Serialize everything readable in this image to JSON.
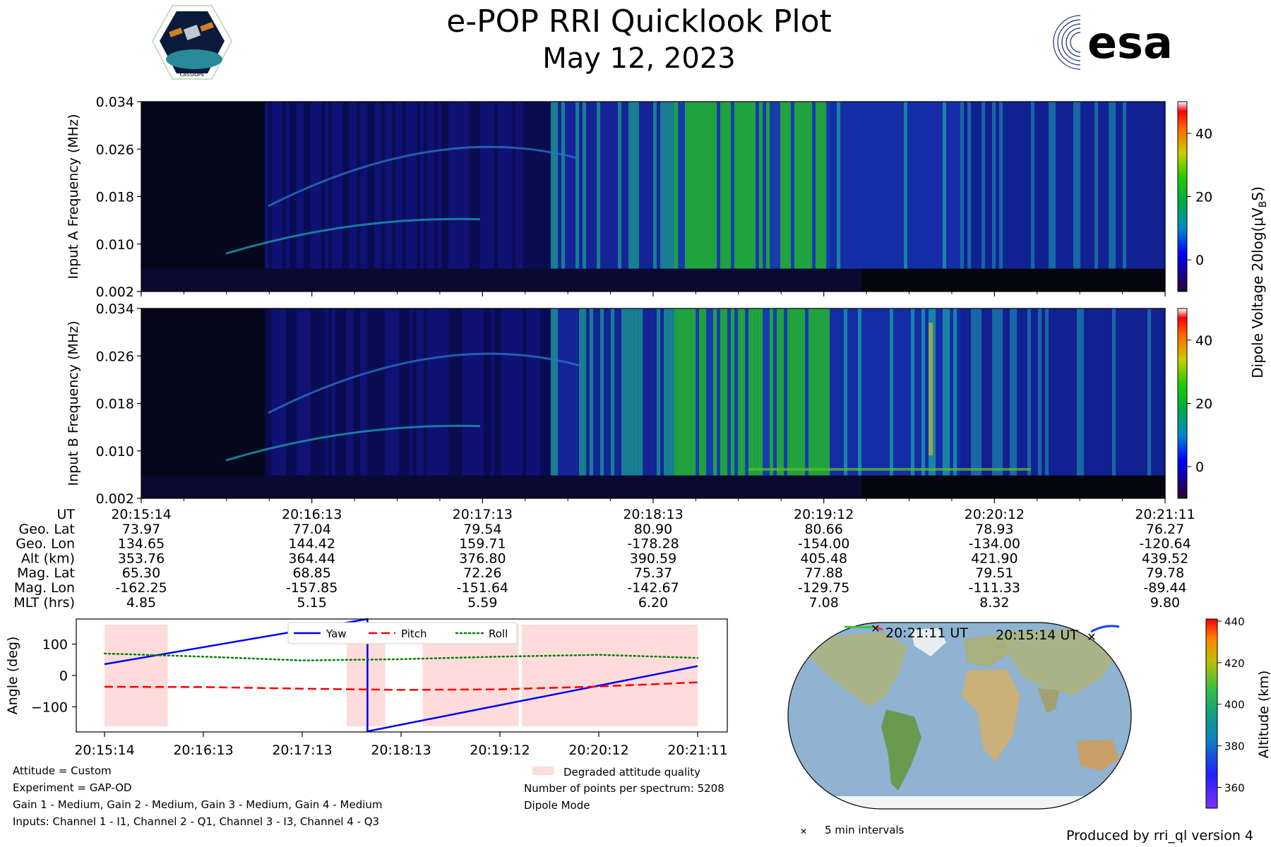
{
  "header": {
    "title": "e-POP RRI Quicklook Plot",
    "date": "May 12, 2023",
    "left_logo_text": "CASSIOPE",
    "right_logo_text": "esa"
  },
  "spectrograms": [
    {
      "ylabel": "Input A Frequency (MHz)",
      "yticks": [
        "0.034",
        "0.026",
        "0.018",
        "0.010",
        "0.002"
      ],
      "colorbar_ticks": [
        "40",
        "20",
        "0"
      ]
    },
    {
      "ylabel": "Input B Frequency (MHz)",
      "yticks": [
        "0.034",
        "0.026",
        "0.018",
        "0.010",
        "0.002"
      ],
      "colorbar_ticks": [
        "40",
        "20",
        "0"
      ]
    }
  ],
  "colorbar_label": "Dipole Voltage 20log(μV",
  "colorbar_label_sub": "B",
  "colorbar_label_end": "S)",
  "ephemeris": {
    "row_labels": [
      "UT",
      "Geo. Lat",
      "Geo. Lon",
      "Alt (km)",
      "Mag. Lat",
      "Mag. Lon",
      "MLT (hrs)"
    ],
    "columns": [
      [
        "20:15:14",
        "73.97",
        "134.65",
        "353.76",
        "65.30",
        "-162.25",
        "4.85"
      ],
      [
        "20:16:13",
        "77.04",
        "144.42",
        "364.44",
        "68.85",
        "-157.85",
        "5.15"
      ],
      [
        "20:17:13",
        "79.54",
        "159.71",
        "376.80",
        "72.26",
        "-151.64",
        "5.59"
      ],
      [
        "20:18:13",
        "80.90",
        "-178.28",
        "390.59",
        "75.37",
        "-142.67",
        "6.20"
      ],
      [
        "20:19:12",
        "80.66",
        "-154.00",
        "405.48",
        "77.88",
        "-129.75",
        "7.08"
      ],
      [
        "20:20:12",
        "78.93",
        "-134.00",
        "421.90",
        "79.51",
        "-111.33",
        "8.32"
      ],
      [
        "20:21:11",
        "76.27",
        "-120.64",
        "439.52",
        "79.78",
        "-89.44",
        "9.80"
      ]
    ]
  },
  "chart_data": {
    "type": "line",
    "ylabel": "Angle (deg)",
    "yticks": [
      "100",
      "0",
      "−100"
    ],
    "ylim": [
      -180,
      180
    ],
    "x": [
      "20:15:14",
      "20:16:13",
      "20:17:13",
      "20:18:13",
      "20:19:12",
      "20:20:12",
      "20:21:11"
    ],
    "series": [
      {
        "name": "Yaw",
        "color": "#0000ee",
        "style": "solid",
        "points": [
          [
            0,
            36
          ],
          [
            2.66,
            180
          ],
          [
            2.66,
            -178
          ],
          [
            6,
            30
          ]
        ]
      },
      {
        "name": "Pitch",
        "color": "#ff0000",
        "style": "dashed",
        "points": [
          [
            0,
            -36
          ],
          [
            1,
            -37
          ],
          [
            2,
            -42
          ],
          [
            3,
            -46
          ],
          [
            4,
            -44
          ],
          [
            5,
            -35
          ],
          [
            6,
            -22
          ]
        ]
      },
      {
        "name": "Roll",
        "color": "#008000",
        "style": "dotted",
        "points": [
          [
            0,
            70
          ],
          [
            1,
            60
          ],
          [
            2,
            48
          ],
          [
            3,
            52
          ],
          [
            4,
            60
          ],
          [
            5,
            66
          ],
          [
            6,
            56
          ]
        ]
      }
    ],
    "degraded_intervals": [
      [
        0,
        0.64
      ],
      [
        2.45,
        2.84
      ],
      [
        3.22,
        4.19
      ],
      [
        4.22,
        6
      ]
    ],
    "degraded_label": "Degraded attitude quality"
  },
  "info": {
    "attitude": "Attitude = Custom",
    "experiment": "Experiment = GAP-OD",
    "gains": "Gain 1 - Medium, Gain 2 - Medium, Gain 3 - Medium, Gain 4 - Medium",
    "inputs": "Inputs: Channel 1 - I1, Channel 2 - Q1, Channel 3 - I3, Channel 4 - Q3",
    "points": "Number of points per spectrum: 5208",
    "mode": "Dipole Mode"
  },
  "map": {
    "end_label": "20:21:11 UT",
    "start_label": "20:15:14 UT",
    "marker_legend": "5 min intervals",
    "colorbar_label": "Altitude (km)",
    "colorbar_ticks": [
      "440",
      "420",
      "400",
      "380",
      "360"
    ]
  },
  "footer": "Produced by rri_ql version 4",
  "colors": {
    "plasma_dark": "#0a0a3a",
    "plasma_blue": "#1a2ab0",
    "plasma_green": "#22c040",
    "degraded_fill": "#ffdcdc",
    "ocean": "#8fb3d0",
    "land": "#a8b488"
  }
}
